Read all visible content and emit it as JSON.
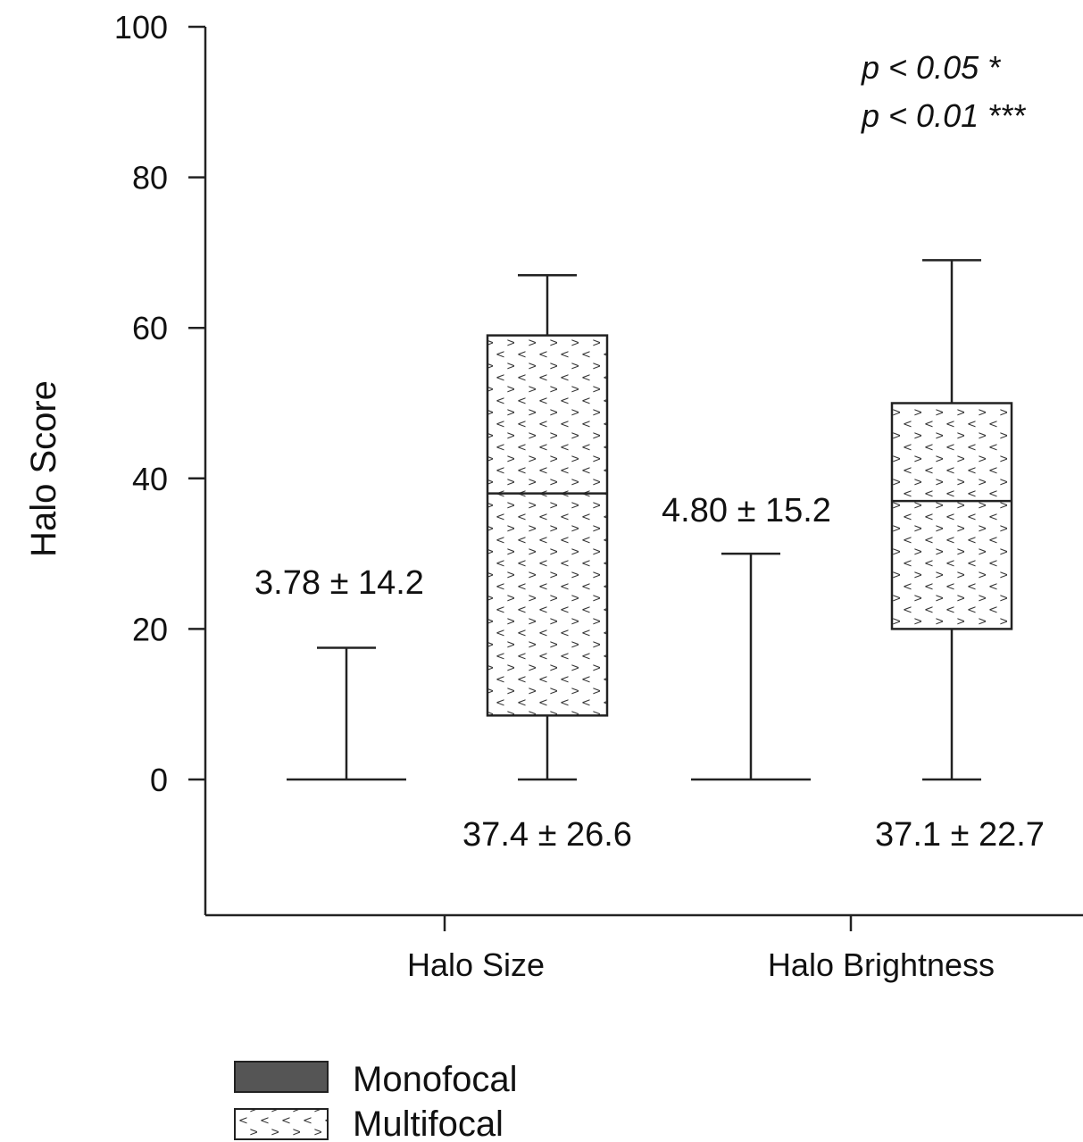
{
  "chart_data": {
    "type": "box",
    "ylabel": "Halo Score",
    "xlabel": "",
    "ylim": [
      -18,
      100
    ],
    "yticks": [
      0,
      20,
      40,
      60,
      80,
      100
    ],
    "categories": [
      "Halo Size",
      "Halo Brightness"
    ],
    "series": [
      {
        "name": "Monofocal",
        "pattern": "solid",
        "boxes": [
          {
            "category": "Halo Size",
            "min": 0,
            "q1": 0,
            "median": 0,
            "q3": 0,
            "max": 17.5,
            "label": "3.78 ± 14.2"
          },
          {
            "category": "Halo Brightness",
            "min": 0,
            "q1": 0,
            "median": 0,
            "q3": 0,
            "max": 30,
            "label": "4.80 ± 15.2"
          }
        ]
      },
      {
        "name": "Multifocal",
        "pattern": "dotted",
        "boxes": [
          {
            "category": "Halo Size",
            "min": 0,
            "q1": 8.5,
            "median": 38,
            "q3": 59,
            "max": 67,
            "label": "37.4 ± 26.6"
          },
          {
            "category": "Halo Brightness",
            "min": 0,
            "q1": 20,
            "median": 37,
            "q3": 50,
            "max": 69,
            "label": "37.1 ± 22.7"
          }
        ]
      }
    ],
    "annotations": [
      "p < 0.05 *",
      "p < 0.01 ***"
    ],
    "legend_position": "bottom-left",
    "grid": false,
    "colors": {
      "axis": "#222222",
      "monofocal_fill": "#555555",
      "multifocal_fill": "#ffffff",
      "pattern_mark": "#333333"
    }
  }
}
